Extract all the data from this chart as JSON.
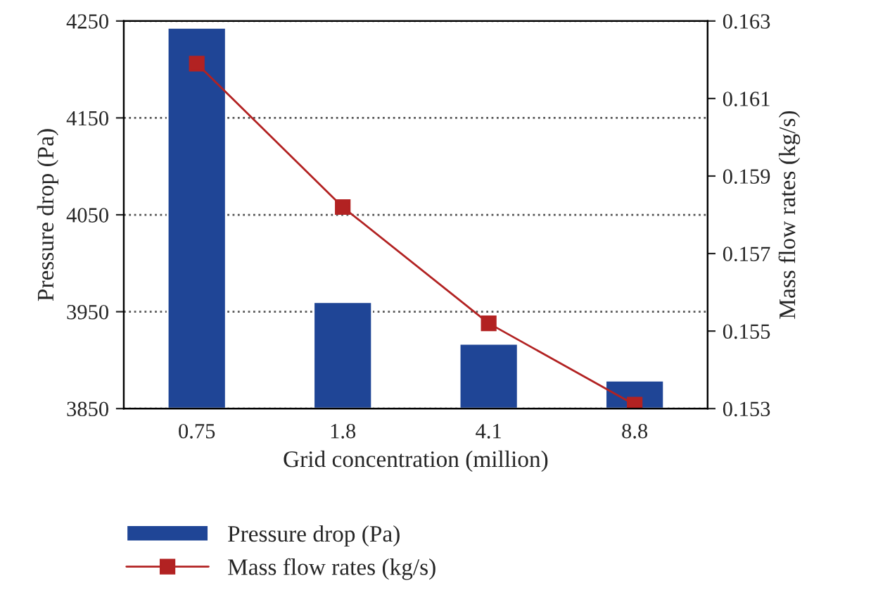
{
  "chart_data": {
    "type": "bar",
    "xlabel": "Grid concentration (million)",
    "ylabel": "Pressure drop (Pa)",
    "y2label": "Mass flow rates (kg/s)",
    "categories": [
      "0.75",
      "1.8",
      "4.1",
      "8.8"
    ],
    "series": [
      {
        "name": "Pressure drop (Pa)",
        "color": "#1f4596",
        "values": [
          4243,
          3960,
          3917,
          3879
        ]
      },
      {
        "name": "Mass flow rates (kg/s)",
        "type": "line",
        "axis": "y2",
        "color": "#b22222",
        "marker": "square",
        "line_style": "solid",
        "values": [
          0.1619,
          0.1582,
          0.1552,
          0.1531
        ]
      }
    ],
    "ylim": [
      3850,
      4250
    ],
    "yticks": [
      3850,
      3950,
      4050,
      4150,
      4250
    ],
    "y2lim": [
      0.153,
      0.163
    ],
    "y2ticks": [
      0.153,
      0.155,
      0.157,
      0.159,
      0.161,
      0.163
    ],
    "grid": "y",
    "legend": "bottom"
  }
}
